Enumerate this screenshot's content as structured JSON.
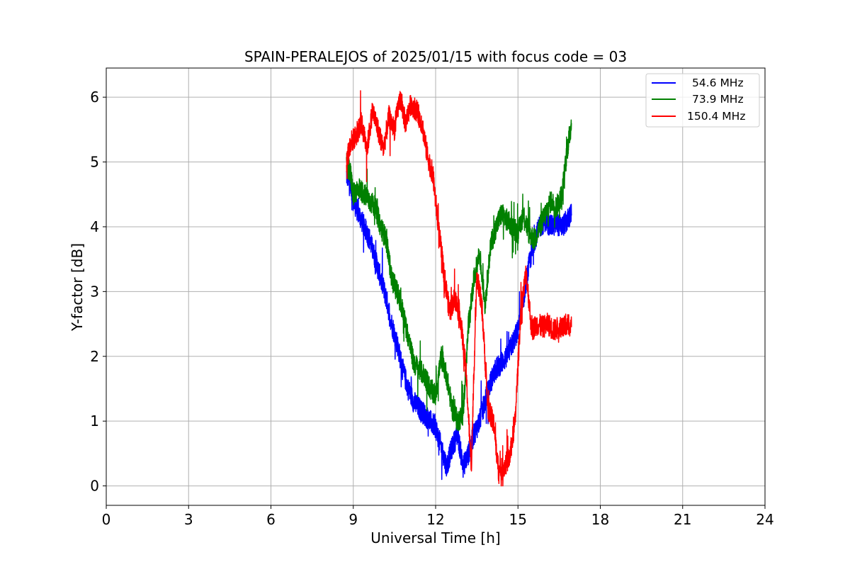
{
  "chart_data": {
    "type": "line",
    "title": "SPAIN-PERALEJOS of 2025/01/15 with focus code = 03",
    "xlabel": "Universal Time [h]",
    "ylabel": "Y-factor [dB]",
    "xlim": [
      0,
      24
    ],
    "ylim": [
      -0.3,
      6.45
    ],
    "xticks": [
      0,
      3,
      6,
      9,
      12,
      15,
      18,
      21,
      24
    ],
    "yticks": [
      0,
      1,
      2,
      3,
      4,
      5,
      6
    ],
    "grid": true,
    "legend_position": "upper right",
    "series": [
      {
        "name": "54.6 MHz",
        "color": "#0000ff",
        "x": [
          8.75,
          8.9,
          9.0,
          9.2,
          9.4,
          9.6,
          9.8,
          10.0,
          10.2,
          10.4,
          10.6,
          10.8,
          11.0,
          11.2,
          11.4,
          11.6,
          11.8,
          12.0,
          12.2,
          12.4,
          12.6,
          12.8,
          13.0,
          13.2,
          13.4,
          13.6,
          13.8,
          14.0,
          14.2,
          14.4,
          14.6,
          14.8,
          15.0,
          15.2,
          15.4,
          15.6,
          15.8,
          16.0,
          16.2,
          16.4,
          16.6,
          16.8,
          16.95
        ],
        "y": [
          4.8,
          4.7,
          4.4,
          4.2,
          4.0,
          3.8,
          3.5,
          3.2,
          2.9,
          2.5,
          2.2,
          1.8,
          1.5,
          1.3,
          1.2,
          1.1,
          1.0,
          0.9,
          0.6,
          0.3,
          0.6,
          0.8,
          0.3,
          0.5,
          0.8,
          1.0,
          1.3,
          1.6,
          1.8,
          1.9,
          2.0,
          2.2,
          2.4,
          2.9,
          3.4,
          3.8,
          4.0,
          4.1,
          4.0,
          4.05,
          4.0,
          4.1,
          4.2
        ]
      },
      {
        "name": "73.9 MHz",
        "color": "#008000",
        "x": [
          8.75,
          8.9,
          9.0,
          9.2,
          9.4,
          9.6,
          9.8,
          10.0,
          10.2,
          10.4,
          10.6,
          10.8,
          11.0,
          11.2,
          11.4,
          11.6,
          11.8,
          12.0,
          12.2,
          12.4,
          12.6,
          12.8,
          13.0,
          13.2,
          13.4,
          13.6,
          13.8,
          14.0,
          14.2,
          14.4,
          14.6,
          14.8,
          15.0,
          15.2,
          15.4,
          15.6,
          15.8,
          16.0,
          16.2,
          16.4,
          16.6,
          16.8,
          16.95
        ],
        "y": [
          5.0,
          4.8,
          4.5,
          4.6,
          4.5,
          4.4,
          4.3,
          4.0,
          3.8,
          3.2,
          3.0,
          2.7,
          2.3,
          1.9,
          1.8,
          1.7,
          1.5,
          1.4,
          2.0,
          1.7,
          1.2,
          1.0,
          1.1,
          2.5,
          3.2,
          3.6,
          2.8,
          3.7,
          4.0,
          4.2,
          4.1,
          4.0,
          3.9,
          4.2,
          3.9,
          3.8,
          4.0,
          4.2,
          4.4,
          4.3,
          4.5,
          5.2,
          5.6
        ]
      },
      {
        "name": "150.4 MHz",
        "color": "#ff0000",
        "x": [
          8.75,
          8.9,
          9.1,
          9.3,
          9.5,
          9.7,
          9.9,
          10.1,
          10.3,
          10.5,
          10.7,
          10.9,
          11.1,
          11.3,
          11.5,
          11.7,
          11.9,
          12.1,
          12.3,
          12.5,
          12.7,
          12.9,
          13.1,
          13.3,
          13.5,
          13.7,
          13.9,
          14.1,
          14.3,
          14.5,
          14.7,
          14.9,
          15.1,
          15.3,
          15.5,
          15.7,
          15.9,
          16.1,
          16.3,
          16.5,
          16.7,
          16.95
        ],
        "y": [
          5.0,
          5.3,
          5.4,
          5.6,
          5.2,
          5.8,
          5.5,
          5.2,
          5.7,
          5.5,
          6.0,
          5.6,
          5.9,
          5.8,
          5.6,
          5.1,
          4.8,
          4.0,
          3.3,
          2.7,
          2.9,
          2.6,
          1.8,
          0.3,
          3.3,
          2.7,
          1.2,
          1.0,
          0.2,
          0.3,
          0.45,
          1.0,
          2.7,
          3.3,
          2.4,
          2.5,
          2.45,
          2.5,
          2.4,
          2.45,
          2.5,
          2.45
        ]
      }
    ]
  }
}
